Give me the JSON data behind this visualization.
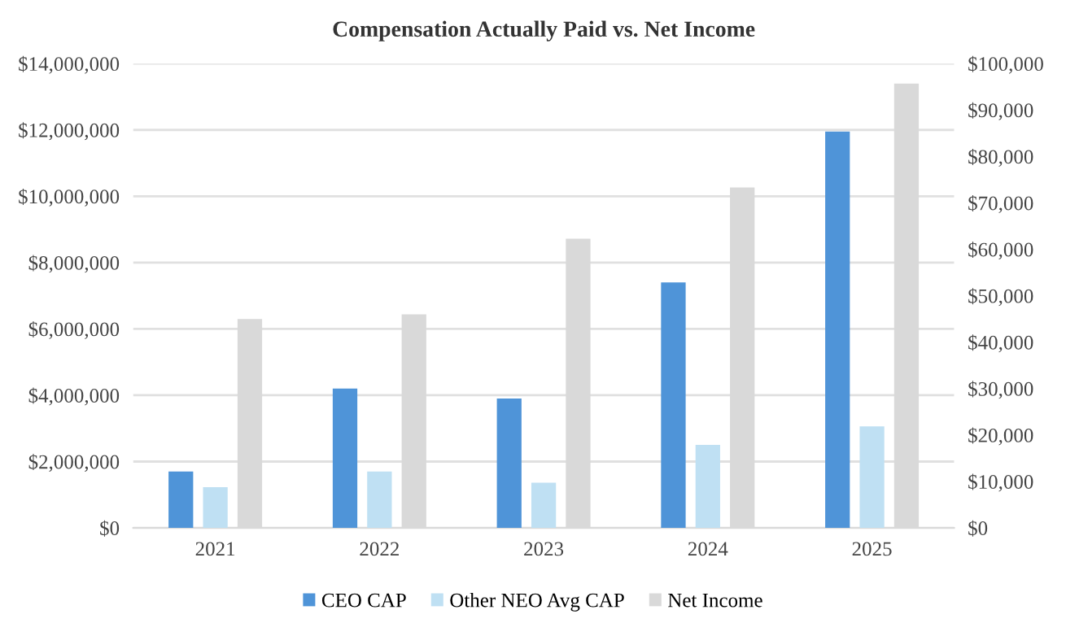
{
  "chart_data": {
    "type": "bar",
    "title": "Compensation Actually Paid vs. Net Income",
    "categories": [
      "2021",
      "2022",
      "2023",
      "2024",
      "2025"
    ],
    "series": [
      {
        "name": "CEO CAP",
        "color": "#4f94d8",
        "values": [
          1700000,
          4200000,
          3900000,
          7400000,
          11950000
        ]
      },
      {
        "name": "Other NEO Avg CAP",
        "color": "#bfe0f3",
        "values": [
          1230000,
          1700000,
          1360000,
          2500000,
          3060000
        ]
      },
      {
        "name": "Net Income",
        "color": "#d9d9d9",
        "axis": "y2",
        "values": [
          45000,
          46000,
          62300,
          73300,
          95700
        ]
      }
    ],
    "ylim": [
      0,
      14000000
    ],
    "yticks": [
      {
        "value": 0,
        "label": "$0"
      },
      {
        "value": 2000000,
        "label": "$2,000,000"
      },
      {
        "value": 4000000,
        "label": "$4,000,000"
      },
      {
        "value": 6000000,
        "label": "$6,000,000"
      },
      {
        "value": 8000000,
        "label": "$8,000,000"
      },
      {
        "value": 10000000,
        "label": "$10,000,000"
      },
      {
        "value": 12000000,
        "label": "$12,000,000"
      },
      {
        "value": 14000000,
        "label": "$14,000,000"
      }
    ],
    "y2lim": [
      0,
      100000
    ],
    "y2ticks": [
      {
        "value": 0,
        "label": "$0"
      },
      {
        "value": 10000,
        "label": "$10,000"
      },
      {
        "value": 20000,
        "label": "$20,000"
      },
      {
        "value": 30000,
        "label": "$30,000"
      },
      {
        "value": 40000,
        "label": "$40,000"
      },
      {
        "value": 50000,
        "label": "$50,000"
      },
      {
        "value": 60000,
        "label": "$60,000"
      },
      {
        "value": 70000,
        "label": "$70,000"
      },
      {
        "value": 80000,
        "label": "$80,000"
      },
      {
        "value": 90000,
        "label": "$90,000"
      },
      {
        "value": 100000,
        "label": "$100,000"
      }
    ],
    "grid": "y",
    "legend": "bottom"
  }
}
